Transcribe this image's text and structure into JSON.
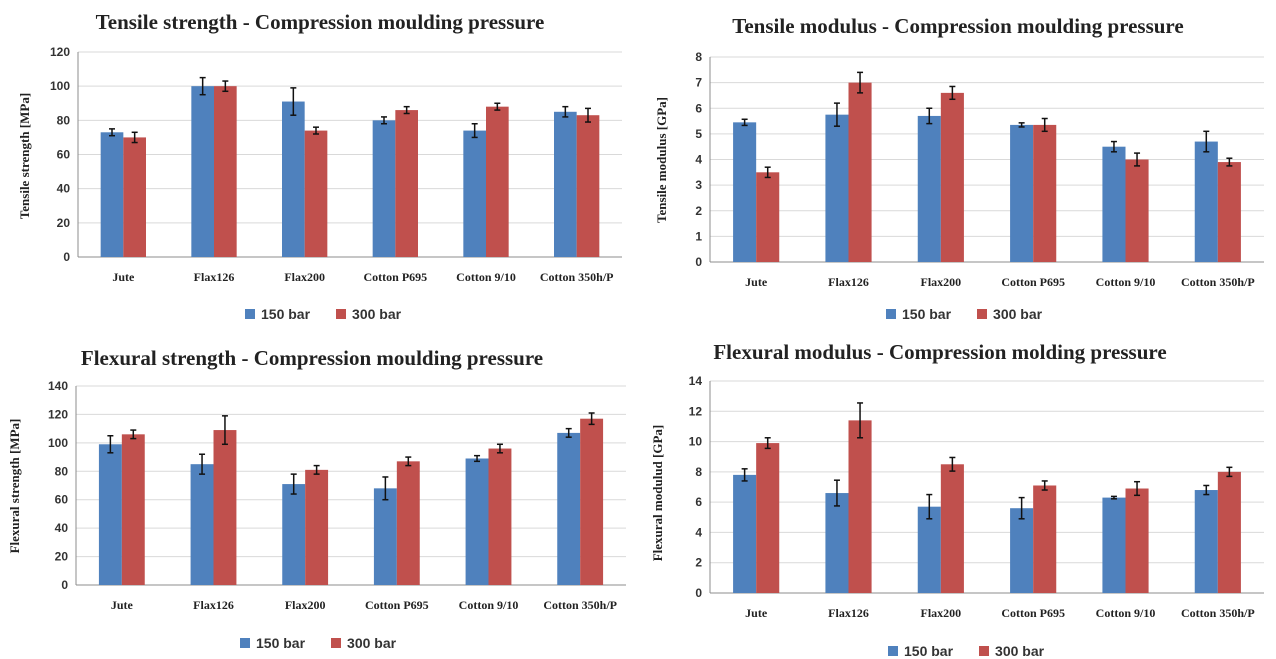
{
  "colors": {
    "s1": "#4f81bd",
    "s2": "#c0504d",
    "grid": "#d9d9d9",
    "axis": "#8c8c8c",
    "err": "#111111"
  },
  "chart_data": [
    {
      "type": "bar",
      "title": "Tensile strength - Compression moulding pressure",
      "ylabel": "Tensile strength [MPa]",
      "xlabel": "",
      "ylim": [
        0,
        120
      ],
      "yticks": [
        0,
        20,
        40,
        60,
        80,
        100,
        120
      ],
      "grid": true,
      "legend": "bottom",
      "categories": [
        "Jute",
        "Flax126",
        "Flax200",
        "Cotton P695",
        "Cotton 9/10",
        "Cotton 350h/P"
      ],
      "series": [
        {
          "name": "150 bar",
          "values": [
            73,
            100,
            91,
            80,
            74,
            85
          ],
          "errors": [
            2,
            5,
            8,
            2,
            4,
            3
          ]
        },
        {
          "name": "300 bar",
          "values": [
            70,
            100,
            74,
            86,
            88,
            83
          ],
          "errors": [
            3,
            3,
            2,
            2,
            2,
            4
          ]
        }
      ]
    },
    {
      "type": "bar",
      "title": "Tensile modulus - Compression moulding pressure",
      "ylabel": "Tensile modulus [GPa]",
      "xlabel": "",
      "ylim": [
        0,
        8
      ],
      "yticks": [
        0,
        1,
        2,
        3,
        4,
        5,
        6,
        7,
        8
      ],
      "grid": true,
      "legend": "bottom",
      "categories": [
        "Jute",
        "Flax126",
        "Flax200",
        "Cotton P695",
        "Cotton 9/10",
        "Cotton 350h/P"
      ],
      "series": [
        {
          "name": "150 bar",
          "values": [
            5.45,
            5.75,
            5.7,
            5.35,
            4.5,
            4.7
          ],
          "errors": [
            0.12,
            0.45,
            0.3,
            0.08,
            0.2,
            0.4
          ]
        },
        {
          "name": "300 bar",
          "values": [
            3.5,
            7.0,
            6.6,
            5.35,
            4.0,
            3.9
          ],
          "errors": [
            0.2,
            0.4,
            0.25,
            0.25,
            0.25,
            0.15
          ]
        }
      ]
    },
    {
      "type": "bar",
      "title": "Flexural strength - Compression moulding pressure",
      "ylabel": "Flexural strength [MPa]",
      "xlabel": "",
      "ylim": [
        0,
        140
      ],
      "yticks": [
        0,
        20,
        40,
        60,
        80,
        100,
        120,
        140
      ],
      "grid": true,
      "legend": "bottom",
      "categories": [
        "Jute",
        "Flax126",
        "Flax200",
        "Cotton P695",
        "Cotton 9/10",
        "Cotton 350h/P"
      ],
      "series": [
        {
          "name": "150 bar",
          "values": [
            99,
            85,
            71,
            68,
            89,
            107
          ],
          "errors": [
            6,
            7,
            7,
            8,
            2,
            3
          ]
        },
        {
          "name": "300 bar",
          "values": [
            106,
            109,
            81,
            87,
            96,
            117
          ],
          "errors": [
            3,
            10,
            3,
            3,
            3,
            4
          ]
        }
      ]
    },
    {
      "type": "bar",
      "title": "Flexural modulus - Compression molding pressure",
      "ylabel": "Flexural modulud [GPa]",
      "xlabel": "",
      "ylim": [
        0,
        14
      ],
      "yticks": [
        0,
        2,
        4,
        6,
        8,
        10,
        12,
        14
      ],
      "grid": true,
      "legend": "bottom",
      "categories": [
        "Jute",
        "Flax126",
        "Flax200",
        "Cotton P695",
        "Cotton 9/10",
        "Cotton 350h/P"
      ],
      "series": [
        {
          "name": "150 bar",
          "values": [
            7.8,
            6.6,
            5.7,
            5.6,
            6.3,
            6.8
          ],
          "errors": [
            0.4,
            0.85,
            0.8,
            0.7,
            0.08,
            0.3
          ]
        },
        {
          "name": "300 bar",
          "values": [
            9.9,
            11.4,
            8.5,
            7.1,
            6.9,
            8.0
          ],
          "errors": [
            0.35,
            1.15,
            0.45,
            0.3,
            0.45,
            0.3
          ]
        }
      ]
    }
  ]
}
